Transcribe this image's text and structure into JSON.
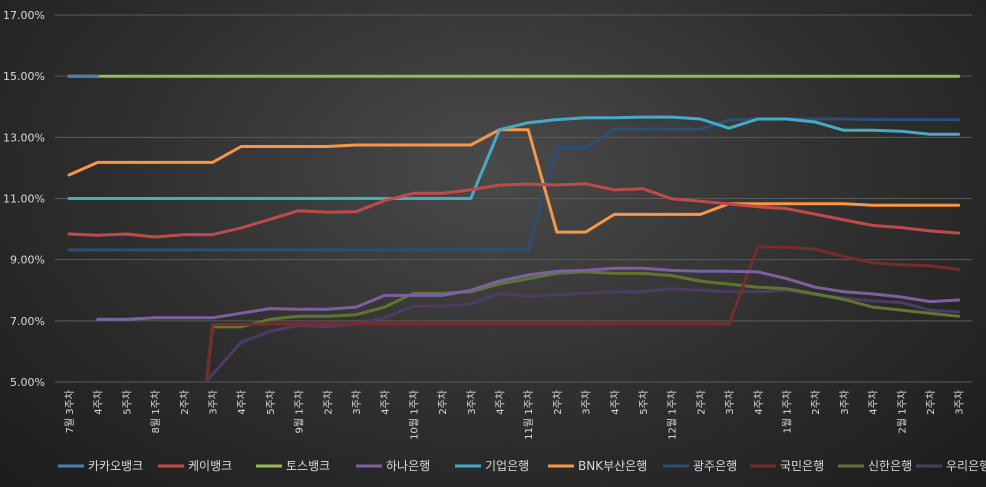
{
  "chart_data": {
    "type": "line",
    "title": "",
    "xlabel": "",
    "ylabel": "",
    "ylim": [
      5,
      17
    ],
    "y_ticks": [
      "5.00%",
      "7.00%",
      "9.00%",
      "11.00%",
      "13.00%",
      "15.00%",
      "17.00%"
    ],
    "y_tick_values": [
      5,
      7,
      9,
      11,
      13,
      15,
      17
    ],
    "grid": true,
    "legend": "bottom",
    "x": [
      "7월 3주차",
      "4주차",
      "5주차",
      "8월 1주차",
      "2주차",
      "3주차",
      "4주차",
      "5주차",
      "9월 1주차",
      "2주차",
      "3주차",
      "4주차",
      "10월 1주차",
      "2주차",
      "3주차",
      "4주차",
      "11월 1주차",
      "2주차",
      "3주차",
      "4주차",
      "5주차",
      "12월 1주차",
      "2주차",
      "3주차",
      "4주차",
      "1월 1주차",
      "2주차",
      "3주차",
      "4주차",
      "2월 1주차",
      "2주차",
      "3주차"
    ],
    "series": [
      {
        "name": "카카오뱅크",
        "color": "#4a7ebb",
        "values": [
          15.0,
          15.0,
          null,
          null,
          null,
          null,
          null,
          null,
          null,
          null,
          null,
          null,
          null,
          null,
          null,
          null,
          null,
          null,
          null,
          null,
          null,
          null,
          null,
          null,
          null,
          null,
          null,
          null,
          null,
          null,
          null,
          null
        ]
      },
      {
        "name": "케이뱅크",
        "color": "#be4b48",
        "values": [
          9.84,
          9.8,
          9.84,
          9.74,
          9.82,
          9.82,
          10.04,
          10.32,
          10.6,
          10.55,
          10.57,
          10.93,
          11.17,
          11.17,
          11.28,
          11.44,
          11.47,
          11.44,
          11.48,
          11.28,
          11.32,
          10.99,
          10.91,
          10.82,
          10.73,
          10.67,
          10.49,
          10.3,
          10.12,
          10.05,
          9.94,
          9.87
        ]
      },
      {
        "name": "토스뱅크",
        "color": "#98b954",
        "values": [
          15.0,
          15.0,
          15.0,
          15.0,
          15.0,
          15.0,
          15.0,
          15.0,
          15.0,
          15.0,
          15.0,
          15.0,
          15.0,
          15.0,
          15.0,
          15.0,
          15.0,
          15.0,
          15.0,
          15.0,
          15.0,
          15.0,
          15.0,
          15.0,
          15.0,
          15.0,
          15.0,
          15.0,
          15.0,
          15.0,
          15.0,
          15.0
        ]
      },
      {
        "name": "하나은행",
        "color": "#7d60a0",
        "values": [
          null,
          7.05,
          7.05,
          7.1,
          7.1,
          7.1,
          7.25,
          7.4,
          7.38,
          7.38,
          7.45,
          7.83,
          7.83,
          7.83,
          8.0,
          8.3,
          8.5,
          8.62,
          8.65,
          8.72,
          8.72,
          8.65,
          8.62,
          8.62,
          8.6,
          8.38,
          8.1,
          7.95,
          7.88,
          7.78,
          7.63,
          7.68
        ]
      },
      {
        "name": "기업은행",
        "color": "#46aac5",
        "values": [
          11.0,
          11.0,
          11.0,
          11.0,
          11.0,
          11.0,
          11.0,
          11.0,
          11.0,
          11.0,
          11.0,
          11.0,
          11.0,
          11.0,
          11.0,
          13.25,
          13.48,
          13.58,
          13.64,
          13.64,
          13.66,
          13.66,
          13.6,
          13.3,
          13.6,
          13.6,
          13.5,
          13.23,
          13.23,
          13.2,
          13.1,
          13.1
        ]
      },
      {
        "name": "BNK부산은행",
        "color": "#f79646",
        "values": [
          11.77,
          12.18,
          12.18,
          12.18,
          12.18,
          12.18,
          12.7,
          12.7,
          12.7,
          12.7,
          12.75,
          12.75,
          12.75,
          12.75,
          12.75,
          13.25,
          13.25,
          9.9,
          9.9,
          10.48,
          10.48,
          10.48,
          10.48,
          10.83,
          10.83,
          10.83,
          10.83,
          10.83,
          10.78,
          10.78,
          10.78,
          10.78
        ]
      },
      {
        "name": "광주은행",
        "color": "#2c4d75",
        "values": [
          9.32,
          9.32,
          9.32,
          9.32,
          9.32,
          9.32,
          9.32,
          9.32,
          9.32,
          9.32,
          9.32,
          9.32,
          9.32,
          9.32,
          9.32,
          9.32,
          9.32,
          12.67,
          12.67,
          13.27,
          13.27,
          13.27,
          13.27,
          13.56,
          13.6,
          13.6,
          13.6,
          13.6,
          13.58,
          13.58,
          13.58,
          13.58
        ]
      },
      {
        "name": "국민은행",
        "color": "#772c2a",
        "values": [
          null,
          null,
          null,
          null,
          null,
          6.88,
          6.88,
          6.9,
          6.9,
          6.9,
          6.9,
          6.9,
          6.9,
          6.9,
          6.9,
          6.9,
          6.9,
          6.9,
          6.9,
          6.9,
          6.9,
          6.9,
          6.9,
          6.9,
          9.42,
          9.4,
          9.35,
          9.1,
          8.9,
          8.83,
          8.8,
          8.68
        ]
      },
      {
        "name": "신한은행",
        "color": "#5f7530",
        "values": [
          null,
          null,
          null,
          null,
          null,
          6.8,
          6.8,
          7.05,
          7.15,
          7.15,
          7.2,
          7.45,
          7.9,
          7.9,
          7.95,
          8.2,
          8.38,
          8.55,
          8.6,
          8.55,
          8.55,
          8.48,
          8.3,
          8.2,
          8.1,
          8.05,
          7.88,
          7.7,
          7.45,
          7.35,
          7.25,
          7.15
        ]
      },
      {
        "name": "우리은행",
        "color": "#4d3b62",
        "values": [
          null,
          null,
          null,
          null,
          null,
          5.25,
          6.3,
          6.65,
          6.85,
          6.8,
          6.9,
          7.1,
          7.48,
          7.48,
          7.55,
          7.9,
          7.8,
          7.85,
          7.9,
          7.95,
          7.95,
          8.05,
          8.0,
          7.95,
          7.95,
          8.0,
          7.85,
          7.75,
          7.65,
          7.6,
          7.35,
          7.3
        ]
      }
    ]
  }
}
